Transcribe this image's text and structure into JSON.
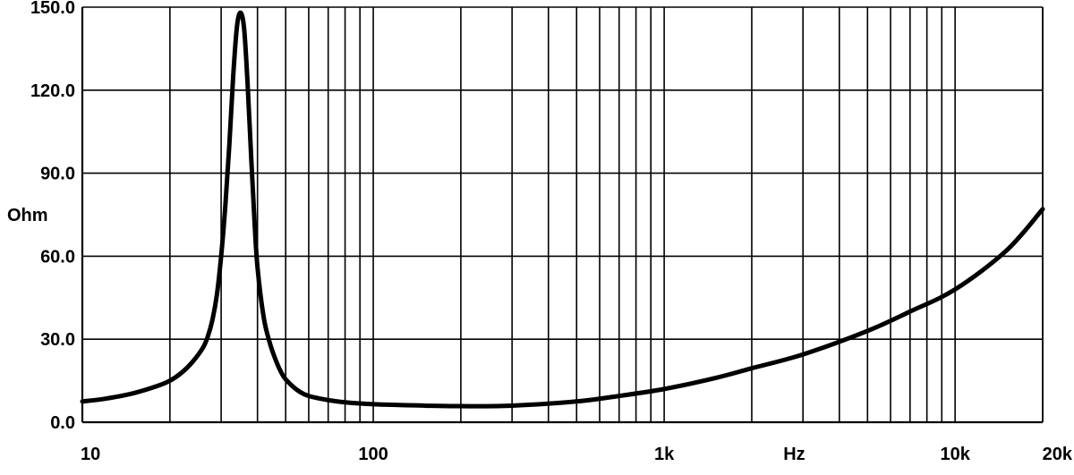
{
  "chart_data": {
    "type": "line",
    "xscale": "log",
    "xlim": [
      10,
      20000
    ],
    "ylim": [
      0,
      150
    ],
    "grid": true,
    "xlabel": "Hz",
    "ylabel": "Ohm",
    "x_tick_labels": [
      "10",
      "100",
      "1k",
      "10k",
      "20k"
    ],
    "y_tick_labels": [
      "0.0",
      "30.0",
      "60.0",
      "90.0",
      "120.0",
      "150.0"
    ],
    "line_color": "#000000",
    "series": [
      {
        "x": [
          10,
          12,
          15,
          18,
          20,
          22,
          24,
          26,
          27,
          28,
          29,
          30,
          31,
          32,
          33,
          34,
          35,
          36,
          37,
          38,
          39,
          40,
          42,
          44,
          46,
          48,
          50,
          55,
          60,
          70,
          80,
          100,
          150,
          200,
          300,
          500,
          700,
          1000,
          1500,
          2000,
          3000,
          5000,
          7000,
          10000,
          15000,
          20000
        ],
        "y": [
          7.5,
          8.5,
          10.5,
          13,
          15,
          18,
          22,
          27,
          31,
          37,
          46,
          60,
          78,
          100,
          125,
          143,
          148,
          142,
          122,
          97,
          74,
          56,
          38,
          29,
          23,
          18.5,
          15.5,
          11.5,
          9.5,
          8,
          7.2,
          6.5,
          6,
          5.8,
          6,
          7.5,
          9.5,
          12,
          16,
          19.5,
          24.5,
          33,
          40,
          48,
          62,
          77
        ]
      }
    ]
  }
}
